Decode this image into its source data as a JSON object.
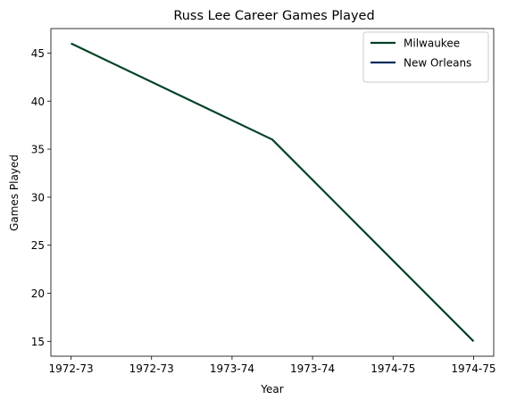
{
  "chart_data": {
    "type": "line",
    "title": "Russ Lee Career Games Played",
    "xlabel": "Year",
    "ylabel": "Games Played",
    "x_ticks": [
      "1972-73",
      "1972-73",
      "1973-74",
      "1973-74",
      "1974-75",
      "1974-75"
    ],
    "x_range": [
      0,
      1
    ],
    "ylim": [
      13.45,
      47.55
    ],
    "y_ticks": [
      15,
      20,
      25,
      30,
      35,
      40,
      45
    ],
    "grid": false,
    "legend_position": "top-right",
    "series": [
      {
        "name": "Milwaukee",
        "color": "#004225",
        "points": [
          {
            "x": 0.0,
            "y": 46
          },
          {
            "x": 0.5,
            "y": 36
          },
          {
            "x": 1.0,
            "y": 15
          }
        ]
      },
      {
        "name": "New Orleans",
        "color": "#002B5C",
        "points": []
      }
    ]
  }
}
